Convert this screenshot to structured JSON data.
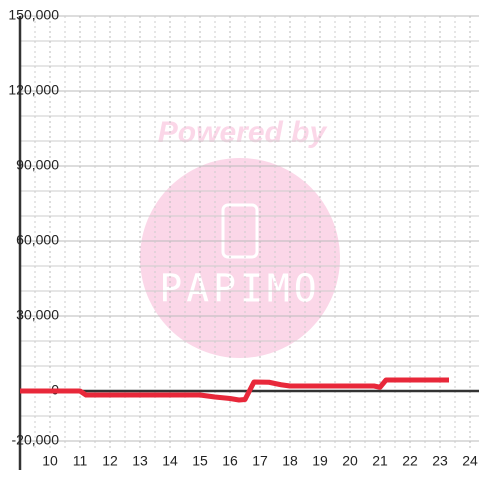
{
  "chart_data": {
    "type": "line",
    "watermark": {
      "title": "Powered by",
      "brand": "PAPIMO"
    },
    "x": [
      9,
      11,
      11.2,
      15,
      15.5,
      16,
      16.3,
      16.5,
      16.8,
      17.3,
      17.7,
      18,
      20.8,
      21,
      21.2,
      23.3
    ],
    "series": [
      {
        "color": "#e8283a",
        "values": [
          0,
          0,
          -1600,
          -1600,
          -2400,
          -3000,
          -3600,
          -3400,
          3600,
          3500,
          2500,
          2000,
          2000,
          1500,
          4400,
          4400
        ]
      }
    ],
    "xlim": [
      9,
      24.3
    ],
    "xticks": [
      10,
      11,
      12,
      13,
      14,
      15,
      16,
      17,
      18,
      19,
      20,
      21,
      22,
      23,
      24
    ],
    "xminorticks": [
      9.5,
      10.5,
      11.5,
      12.5,
      13.5,
      14.5,
      15.5,
      16.5,
      17.5,
      18.5,
      19.5,
      20.5,
      21.5,
      22.5,
      23.5
    ],
    "ylim": [
      -20000,
      150000
    ],
    "yticks": [
      {
        "value": -20000,
        "label": "-20,000"
      },
      0,
      {
        "value": 30000,
        "label": "30,000"
      },
      {
        "value": 60000,
        "label": "60,000"
      },
      {
        "value": 90000,
        "label": "90,000"
      },
      {
        "value": 120000,
        "label": "120,000"
      },
      {
        "value": 150000,
        "label": "150,000"
      }
    ],
    "yminorticks": [
      -10000,
      10000,
      20000,
      40000,
      50000,
      70000,
      80000,
      100000,
      110000,
      130000,
      140000
    ],
    "grid": true
  }
}
